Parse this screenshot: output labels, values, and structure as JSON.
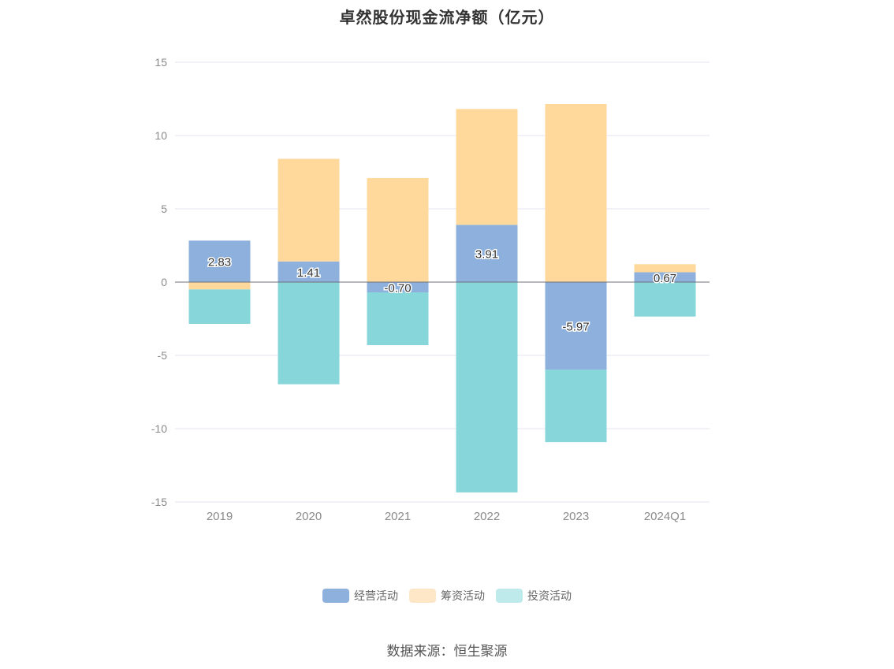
{
  "chart_data": {
    "type": "bar",
    "stacked": true,
    "title": "卓然股份现金流净额（亿元）",
    "categories": [
      "2019",
      "2020",
      "2021",
      "2022",
      "2023",
      "2024Q1"
    ],
    "series": [
      {
        "name": "经营活动",
        "values": [
          2.83,
          1.41,
          -0.7,
          3.91,
          -5.97,
          0.67
        ],
        "labels": [
          "2.83",
          "1.41",
          "-0.70",
          "3.91",
          "-5.97",
          "0.67"
        ],
        "color": "#8eb0dc",
        "legend_color": "#8eb0dc"
      },
      {
        "name": "筹资活动",
        "values": [
          -0.5,
          7.0,
          7.1,
          7.9,
          12.15,
          0.55
        ],
        "color": "#ffd99b",
        "legend_color": "#fde7c6"
      },
      {
        "name": "投资活动",
        "values": [
          -2.35,
          -6.97,
          -3.6,
          -14.35,
          -4.95,
          -2.35
        ],
        "color": "#87d6da",
        "legend_color": "#bfeaec"
      }
    ],
    "ylim": [
      -15,
      15
    ],
    "yticks": [
      15,
      10,
      5,
      0,
      -5,
      -10,
      -15
    ],
    "ytick_labels": [
      "15",
      "10",
      "5",
      "0",
      "-5",
      "-10",
      "-15"
    ],
    "grid": true,
    "legend_position": "bottom",
    "source_text": "数据来源：恒生聚源",
    "colors": {
      "grid": "#e3e6f0",
      "zero_line": "#6e7079",
      "axis_text": "#8a8a8a"
    }
  }
}
